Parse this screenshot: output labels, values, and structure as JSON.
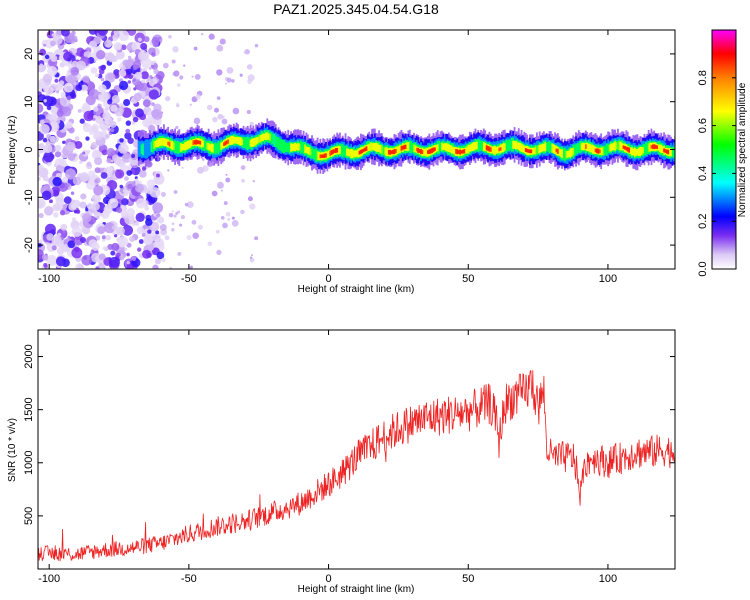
{
  "title": "PAZ1.2025.345.04.54.G18",
  "colors": {
    "snr_line": "#ee2222",
    "frame": "#000000",
    "background": "#ffffff"
  },
  "chart_data": [
    {
      "type": "heatmap",
      "title": "PAZ1.2025.345.04.54.G18",
      "xlabel": "Height of straight line (km)",
      "ylabel": "Frequency (Hz)",
      "xlim": [
        -104,
        124
      ],
      "ylim": [
        -25,
        25
      ],
      "x_ticks": [
        -100,
        -50,
        0,
        50,
        100
      ],
      "x_tick_labels": [
        "-100",
        "-50",
        "0",
        "50",
        "100"
      ],
      "y_ticks": [
        -20,
        -10,
        0,
        10,
        20
      ],
      "y_tick_labels": [
        "-20",
        "-10",
        "0",
        "10",
        "20"
      ],
      "colorbar": {
        "label": "Normalized spectral amplitude",
        "range": [
          0,
          1
        ],
        "ticks": [
          0.0,
          0.2,
          0.4,
          0.6,
          0.8
        ],
        "tick_labels": [
          "0.0",
          "0.2",
          "0.4",
          "0.6",
          "0.8"
        ],
        "colormap": "rainbow"
      },
      "noise_region_x": [
        -104,
        -60
      ],
      "ridge": {
        "x": [
          -68,
          -60,
          -50,
          -40,
          -30,
          -22,
          -15,
          -8,
          0,
          6,
          15,
          30,
          45,
          55,
          62,
          70,
          78,
          85,
          90,
          100,
          110,
          124
        ],
        "freq": [
          0.5,
          1.0,
          1.0,
          0.8,
          1.8,
          2.2,
          1.0,
          -0.5,
          -1.0,
          -0.5,
          0.0,
          0.0,
          0.0,
          0.3,
          0.5,
          0.3,
          0.0,
          -0.5,
          0.0,
          0.3,
          0.0,
          0.0
        ],
        "amplitude": [
          0.45,
          0.75,
          0.9,
          0.8,
          0.85,
          0.7,
          0.7,
          0.75,
          0.95,
          0.9,
          0.92,
          0.95,
          0.95,
          0.9,
          0.8,
          0.9,
          0.85,
          0.7,
          0.85,
          0.8,
          0.9,
          0.9
        ]
      }
    },
    {
      "type": "line",
      "xlabel": "Height of straight line (km)",
      "ylabel": "SNR (10 * v/v)",
      "xlim": [
        -104,
        124
      ],
      "ylim": [
        0,
        2250
      ],
      "x_ticks": [
        -100,
        -50,
        0,
        50,
        100
      ],
      "x_tick_labels": [
        "-100",
        "-50",
        "0",
        "50",
        "100"
      ],
      "y_ticks": [
        500,
        1000,
        1500,
        2000
      ],
      "y_tick_labels": [
        "500",
        "1000",
        "1500",
        "2000"
      ],
      "series": [
        {
          "name": "SNR",
          "color": "#ee2222",
          "x": [
            -104,
            -90,
            -80,
            -70,
            -60,
            -50,
            -40,
            -30,
            -20,
            -10,
            0,
            5,
            10,
            15,
            20,
            25,
            30,
            35,
            40,
            45,
            50,
            55,
            58,
            60,
            61,
            63,
            65,
            70,
            73,
            75,
            77,
            78,
            80,
            85,
            88,
            90,
            92,
            95,
            100,
            105,
            110,
            115,
            120,
            124
          ],
          "values": [
            150,
            140,
            180,
            200,
            240,
            330,
            400,
            450,
            530,
            620,
            800,
            900,
            1050,
            1150,
            1250,
            1320,
            1380,
            1420,
            1440,
            1460,
            1480,
            1530,
            1560,
            1400,
            1200,
            1550,
            1600,
            1650,
            1750,
            1500,
            1700,
            1150,
            1050,
            1050,
            1050,
            700,
            1000,
            1050,
            1000,
            1050,
            1100,
            1100,
            1120,
            1100
          ]
        }
      ]
    }
  ]
}
